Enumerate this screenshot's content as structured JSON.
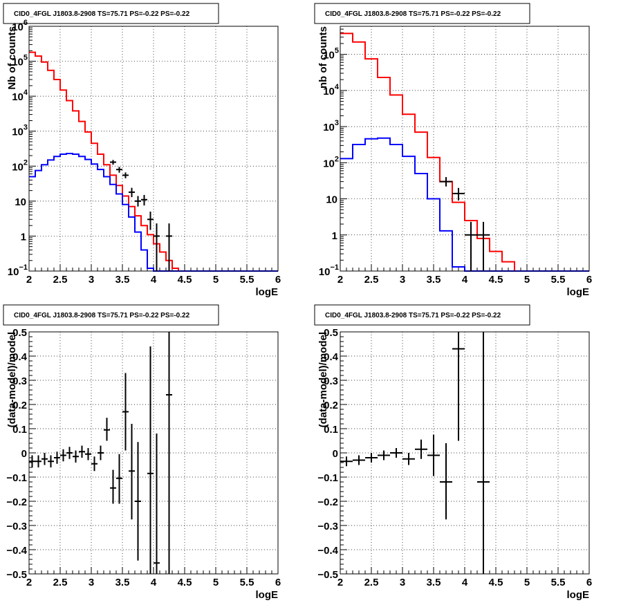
{
  "chart_data": [
    {
      "type": "line",
      "title": "CID0_4FGL J1803.8-2908 TS=75.71 PS=-0.22 PS=-0.22",
      "xlabel": "logE",
      "ylabel": "Nb of counts",
      "xlim": [
        2,
        6
      ],
      "ylim": [
        0.1,
        1000000
      ],
      "yscale": "log",
      "grid": true,
      "xticks": [
        "2",
        "2.5",
        "3",
        "3.5",
        "4",
        "4.5",
        "5",
        "5.5",
        "6"
      ],
      "yticks": [
        {
          "v": 0.1,
          "label": "10",
          "exp": "−1"
        },
        {
          "v": 1,
          "label": "1",
          "exp": ""
        },
        {
          "v": 10,
          "label": "10",
          "exp": ""
        },
        {
          "v": 100,
          "label": "10",
          "exp": "2"
        },
        {
          "v": 1000,
          "label": "10",
          "exp": "3"
        },
        {
          "v": 10000,
          "label": "10",
          "exp": "4"
        },
        {
          "v": 100000,
          "label": "10",
          "exp": "5"
        },
        {
          "v": 1000000,
          "label": "10",
          "exp": "6"
        }
      ],
      "series": [
        {
          "color": "#ff0000",
          "kind": "step",
          "edges": [
            2.0,
            2.1,
            2.2,
            2.3,
            2.4,
            2.5,
            2.6,
            2.7,
            2.8,
            2.9,
            3.0,
            3.1,
            3.2,
            3.3,
            3.4,
            3.5,
            3.6,
            3.7,
            3.8,
            3.9,
            4.0,
            4.1,
            4.2,
            4.3,
            4.4,
            4.5,
            4.6,
            4.7,
            4.8,
            4.9,
            5.0,
            5.1,
            5.2,
            5.3,
            5.4,
            5.5,
            5.6,
            5.7,
            5.8,
            5.9,
            6.0
          ],
          "values": [
            180000,
            140000,
            95000,
            55000,
            30000,
            15000,
            7500,
            3800,
            1900,
            950,
            450,
            220,
            110,
            55,
            28,
            14,
            7,
            3.8,
            2,
            1.1,
            0.6,
            0.35,
            0.2,
            0.12,
            0.1,
            0.1,
            0.1,
            0.1,
            0.1,
            0.1,
            0.1,
            0.1,
            0.1,
            0.1,
            0.1,
            0.1,
            0.1,
            0.1,
            0.1,
            0.1
          ]
        },
        {
          "color": "#0000ff",
          "kind": "step",
          "edges": [
            2.0,
            2.1,
            2.2,
            2.3,
            2.4,
            2.5,
            2.6,
            2.7,
            2.8,
            2.9,
            3.0,
            3.1,
            3.2,
            3.3,
            3.4,
            3.5,
            3.6,
            3.7,
            3.8,
            3.9,
            4.0,
            4.1,
            4.2,
            4.3,
            4.4,
            4.5,
            4.6,
            4.7,
            4.8,
            4.9,
            5.0,
            5.1,
            5.2,
            5.3,
            5.4,
            5.5,
            5.6,
            5.7,
            5.8,
            5.9,
            6.0
          ],
          "values": [
            50,
            75,
            110,
            150,
            190,
            220,
            230,
            220,
            190,
            155,
            115,
            80,
            50,
            30,
            16,
            8,
            3.5,
            1.3,
            0.4,
            0.12,
            0.1,
            0.1,
            0.1,
            0.1,
            0.1,
            0.1,
            0.1,
            0.1,
            0.1,
            0.1,
            0.1,
            0.1,
            0.1,
            0.1,
            0.1,
            0.1,
            0.1,
            0.1,
            0.1,
            0.1
          ]
        },
        {
          "color": "#000000",
          "kind": "points",
          "points": [
            {
              "x": 3.35,
              "y": 130,
              "lo": 110,
              "hi": 150,
              "xerr": 0.05
            },
            {
              "x": 3.45,
              "y": 80,
              "lo": 65,
              "hi": 95,
              "xerr": 0.05
            },
            {
              "x": 3.55,
              "y": 55,
              "lo": 45,
              "hi": 66,
              "xerr": 0.05
            },
            {
              "x": 3.65,
              "y": 18,
              "lo": 13,
              "hi": 24,
              "xerr": 0.05
            },
            {
              "x": 3.75,
              "y": 10,
              "lo": 7,
              "hi": 14,
              "xerr": 0.05
            },
            {
              "x": 3.85,
              "y": 11,
              "lo": 7.5,
              "hi": 15,
              "xerr": 0.05
            },
            {
              "x": 3.95,
              "y": 3,
              "lo": 1.5,
              "hi": 5,
              "xerr": 0.05
            },
            {
              "x": 4.05,
              "y": 1,
              "lo": 0.1,
              "hi": 2.3,
              "xerr": 0.05
            },
            {
              "x": 4.25,
              "y": 1,
              "lo": 0.1,
              "hi": 2.3,
              "xerr": 0.05
            }
          ]
        }
      ]
    },
    {
      "type": "line",
      "title": "CID0_4FGL J1803.8-2908 TS=75.71 PS=-0.22 PS=-0.22",
      "xlabel": "logE",
      "ylabel": "nb of counts",
      "xlim": [
        2,
        6
      ],
      "ylim": [
        0.1,
        600000
      ],
      "yscale": "log",
      "grid": true,
      "xticks": [
        "2",
        "2.5",
        "3",
        "3.5",
        "4",
        "4.5",
        "5",
        "5.5",
        "6"
      ],
      "yticks": [
        {
          "v": 0.1,
          "label": "10",
          "exp": "−1"
        },
        {
          "v": 1,
          "label": "1",
          "exp": ""
        },
        {
          "v": 10,
          "label": "10",
          "exp": ""
        },
        {
          "v": 100,
          "label": "10",
          "exp": "2"
        },
        {
          "v": 1000,
          "label": "10",
          "exp": "3"
        },
        {
          "v": 10000,
          "label": "10",
          "exp": "4"
        },
        {
          "v": 100000,
          "label": "10",
          "exp": "5"
        }
      ],
      "series": [
        {
          "color": "#ff0000",
          "kind": "step",
          "edges": [
            2.0,
            2.2,
            2.4,
            2.6,
            2.8,
            3.0,
            3.2,
            3.4,
            3.6,
            3.8,
            4.0,
            4.2,
            4.4,
            4.6,
            4.8,
            5.0,
            5.2,
            5.4,
            5.6,
            5.8,
            6.0
          ],
          "values": [
            380000,
            220000,
            75000,
            23000,
            7500,
            2200,
            700,
            140,
            30,
            8,
            2.5,
            0.8,
            0.35,
            0.18,
            0.1,
            0.1,
            0.1,
            0.1,
            0.1,
            0.1
          ]
        },
        {
          "color": "#0000ff",
          "kind": "step",
          "edges": [
            2.0,
            2.2,
            2.4,
            2.6,
            2.8,
            3.0,
            3.2,
            3.4,
            3.6,
            3.8,
            4.0,
            4.2,
            4.4,
            4.6,
            4.8,
            5.0,
            5.2,
            5.4,
            5.6,
            5.8,
            6.0
          ],
          "values": [
            130,
            320,
            460,
            480,
            320,
            150,
            50,
            10,
            1.3,
            0.13,
            0.1,
            0.1,
            0.1,
            0.1,
            0.1,
            0.1,
            0.1,
            0.1,
            0.1,
            0.1
          ]
        },
        {
          "color": "#000000",
          "kind": "points",
          "points": [
            {
              "x": 3.7,
              "y": 30,
              "lo": 22,
              "hi": 40,
              "xerr": 0.1
            },
            {
              "x": 3.9,
              "y": 14,
              "lo": 9,
              "hi": 20,
              "xerr": 0.1
            },
            {
              "x": 4.1,
              "y": 1,
              "lo": 0.1,
              "hi": 2.3,
              "xerr": 0.1
            },
            {
              "x": 4.3,
              "y": 1,
              "lo": 0.1,
              "hi": 2.3,
              "xerr": 0.1
            }
          ]
        }
      ]
    },
    {
      "type": "scatter",
      "title": "CID0_4FGL J1803.8-2908 TS=75.71 PS=-0.22 PS=-0.22",
      "xlabel": "logE",
      "ylabel": "(data-model)/model",
      "xlim": [
        2,
        6
      ],
      "ylim": [
        -0.5,
        0.5
      ],
      "grid": true,
      "xticks": [
        "2",
        "2.5",
        "3",
        "3.5",
        "4",
        "4.5",
        "5",
        "5.5",
        "6"
      ],
      "yticks": [
        "−0.5",
        "−0.4",
        "−0.3",
        "−0.2",
        "−0.1",
        "0",
        "0.1",
        "0.2",
        "0.3",
        "0.4",
        "0.5"
      ],
      "points": [
        {
          "x": 2.05,
          "y": -0.035,
          "lo": -0.06,
          "hi": -0.01,
          "xerr": 0.05
        },
        {
          "x": 2.15,
          "y": -0.035,
          "lo": -0.06,
          "hi": -0.01,
          "xerr": 0.05
        },
        {
          "x": 2.25,
          "y": -0.025,
          "lo": -0.05,
          "hi": 0.0,
          "xerr": 0.05
        },
        {
          "x": 2.35,
          "y": -0.035,
          "lo": -0.06,
          "hi": -0.01,
          "xerr": 0.05
        },
        {
          "x": 2.45,
          "y": -0.02,
          "lo": -0.045,
          "hi": 0.005,
          "xerr": 0.05
        },
        {
          "x": 2.55,
          "y": -0.01,
          "lo": -0.035,
          "hi": 0.015,
          "xerr": 0.05
        },
        {
          "x": 2.65,
          "y": 0.0,
          "lo": -0.025,
          "hi": 0.025,
          "xerr": 0.05
        },
        {
          "x": 2.75,
          "y": -0.015,
          "lo": -0.04,
          "hi": 0.01,
          "xerr": 0.05
        },
        {
          "x": 2.85,
          "y": 0.005,
          "lo": -0.02,
          "hi": 0.03,
          "xerr": 0.05
        },
        {
          "x": 2.95,
          "y": -0.005,
          "lo": -0.03,
          "hi": 0.02,
          "xerr": 0.05
        },
        {
          "x": 3.05,
          "y": -0.045,
          "lo": -0.075,
          "hi": -0.015,
          "xerr": 0.05
        },
        {
          "x": 3.15,
          "y": 0.0,
          "lo": -0.03,
          "hi": 0.03,
          "xerr": 0.05
        },
        {
          "x": 3.25,
          "y": 0.095,
          "lo": 0.05,
          "hi": 0.145,
          "xerr": 0.05
        },
        {
          "x": 3.35,
          "y": -0.145,
          "lo": -0.21,
          "hi": -0.07,
          "xerr": 0.05
        },
        {
          "x": 3.45,
          "y": -0.105,
          "lo": -0.21,
          "hi": -0.005,
          "xerr": 0.05
        },
        {
          "x": 3.55,
          "y": 0.17,
          "lo": 0.01,
          "hi": 0.33,
          "xerr": 0.05
        },
        {
          "x": 3.65,
          "y": -0.075,
          "lo": -0.275,
          "hi": 0.12,
          "xerr": 0.05
        },
        {
          "x": 3.75,
          "y": -0.2,
          "lo": -0.445,
          "hi": 0.045,
          "xerr": 0.05
        },
        {
          "x": 3.95,
          "y": -0.085,
          "lo": -0.5,
          "hi": 0.44,
          "xerr": 0.05
        },
        {
          "x": 4.05,
          "y": -0.455,
          "lo": -0.5,
          "hi": 0.08,
          "xerr": 0.05
        },
        {
          "x": 4.25,
          "y": 0.24,
          "lo": -0.5,
          "hi": 0.5,
          "xerr": 0.05
        }
      ]
    },
    {
      "type": "scatter",
      "title": "CID0_4FGL J1803.8-2908 TS=75.71 PS=-0.22 PS=-0.22",
      "xlabel": "logE",
      "ylabel": "(data-model)/model",
      "xlim": [
        2,
        6
      ],
      "ylim": [
        -0.5,
        0.5
      ],
      "grid": true,
      "xticks": [
        "2",
        "2.5",
        "3",
        "3.5",
        "4",
        "4.5",
        "5",
        "5.5",
        "6"
      ],
      "yticks": [
        "−0.5",
        "−0.4",
        "−0.3",
        "−0.2",
        "−0.1",
        "0",
        "0.1",
        "0.2",
        "0.3",
        "0.4",
        "0.5"
      ],
      "points": [
        {
          "x": 2.1,
          "y": -0.035,
          "lo": -0.055,
          "hi": -0.015,
          "xerr": 0.1
        },
        {
          "x": 2.3,
          "y": -0.03,
          "lo": -0.05,
          "hi": -0.01,
          "xerr": 0.1
        },
        {
          "x": 2.5,
          "y": -0.02,
          "lo": -0.04,
          "hi": 0.0,
          "xerr": 0.1
        },
        {
          "x": 2.7,
          "y": -0.01,
          "lo": -0.03,
          "hi": 0.01,
          "xerr": 0.1
        },
        {
          "x": 2.9,
          "y": 0.0,
          "lo": -0.02,
          "hi": 0.02,
          "xerr": 0.1
        },
        {
          "x": 3.1,
          "y": -0.025,
          "lo": -0.05,
          "hi": 0.0,
          "xerr": 0.1
        },
        {
          "x": 3.3,
          "y": 0.015,
          "lo": -0.025,
          "hi": 0.055,
          "xerr": 0.1
        },
        {
          "x": 3.5,
          "y": -0.01,
          "lo": -0.095,
          "hi": 0.075,
          "xerr": 0.1
        },
        {
          "x": 3.7,
          "y": -0.12,
          "lo": -0.275,
          "hi": 0.04,
          "xerr": 0.1
        },
        {
          "x": 3.9,
          "y": 0.43,
          "lo": 0.05,
          "hi": 0.5,
          "xerr": 0.1
        },
        {
          "x": 4.3,
          "y": -0.12,
          "lo": -0.5,
          "hi": 0.5,
          "xerr": 0.1
        }
      ]
    }
  ]
}
